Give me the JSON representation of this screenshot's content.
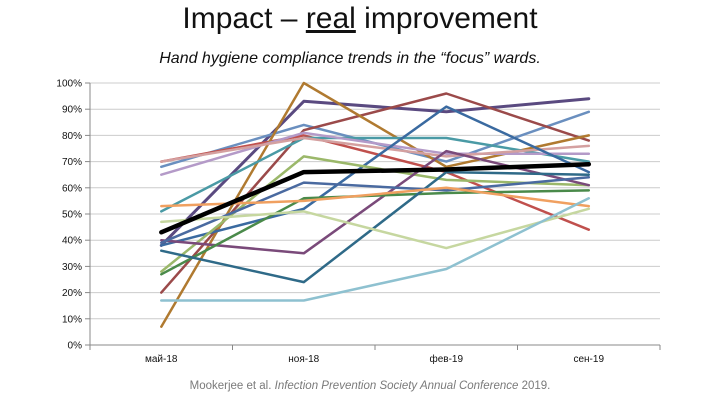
{
  "header": {
    "title_before": "Impact – ",
    "title_underlined": "real",
    "title_after": " improvement",
    "subtitle": "Hand hygiene compliance trends in the “focus” wards."
  },
  "citation": {
    "author": "Mookerjee et al. ",
    "text": "Infection Prevention Society Annual Conference",
    "year": " 2019."
  },
  "chart_data": {
    "type": "line",
    "title": "",
    "xlabel": "",
    "ylabel": "",
    "categories": [
      "май-18",
      "ноя-18",
      "фев-19",
      "сен-19"
    ],
    "y_ticks": [
      "0%",
      "10%",
      "20%",
      "30%",
      "40%",
      "50%",
      "60%",
      "70%",
      "80%",
      "90%",
      "100%"
    ],
    "ylim": [
      0,
      100
    ],
    "grid": true,
    "legend": "none",
    "series": [
      {
        "color": "#5a4a80",
        "width": 3,
        "values": [
          38,
          93,
          89,
          94
        ]
      },
      {
        "color": "#6a8fbf",
        "width": 2.5,
        "values": [
          68,
          84,
          70,
          89
        ]
      },
      {
        "color": "#9b4a4a",
        "width": 2.5,
        "values": [
          20,
          82,
          96,
          78
        ]
      },
      {
        "color": "#c0504d",
        "width": 2.5,
        "values": [
          70,
          80,
          66,
          44
        ]
      },
      {
        "color": "#b07a30",
        "width": 2.5,
        "values": [
          7,
          100,
          68,
          80
        ]
      },
      {
        "color": "#4a9aa5",
        "width": 2.5,
        "values": [
          51,
          79,
          79,
          70
        ]
      },
      {
        "color": "#b49ac8",
        "width": 2.5,
        "values": [
          65,
          81,
          73,
          73
        ]
      },
      {
        "color": "#d4a0a0",
        "width": 2.5,
        "values": [
          70,
          79,
          72,
          76
        ]
      },
      {
        "color": "#3a6aa0",
        "width": 2.5,
        "values": [
          38,
          52,
          91,
          66
        ]
      },
      {
        "color": "#9bb86a",
        "width": 2.5,
        "values": [
          28,
          72,
          63,
          61
        ]
      },
      {
        "color": "#7a4a7a",
        "width": 2.5,
        "values": [
          40,
          35,
          74,
          61
        ]
      },
      {
        "color": "#4a8a4a",
        "width": 2.5,
        "values": [
          27,
          56,
          58,
          59
        ]
      },
      {
        "color": "#2f6a88",
        "width": 2.5,
        "values": [
          36,
          24,
          66,
          65
        ]
      },
      {
        "color": "#4a6aa0",
        "width": 2.5,
        "values": [
          39,
          62,
          59,
          64
        ]
      },
      {
        "color": "#f0a060",
        "width": 2.5,
        "values": [
          53,
          55,
          60,
          53
        ]
      },
      {
        "color": "#c6d7a0",
        "width": 2.5,
        "values": [
          47,
          51,
          37,
          52
        ]
      },
      {
        "color": "#8ec1d0",
        "width": 2.5,
        "values": [
          17,
          17,
          29,
          56
        ]
      },
      {
        "color": "#000000",
        "width": 4.5,
        "values": [
          43,
          66,
          67,
          69
        ]
      }
    ]
  },
  "colors": {
    "axis": "#888888",
    "grid": "#cccccc",
    "average_line": "#000000"
  }
}
